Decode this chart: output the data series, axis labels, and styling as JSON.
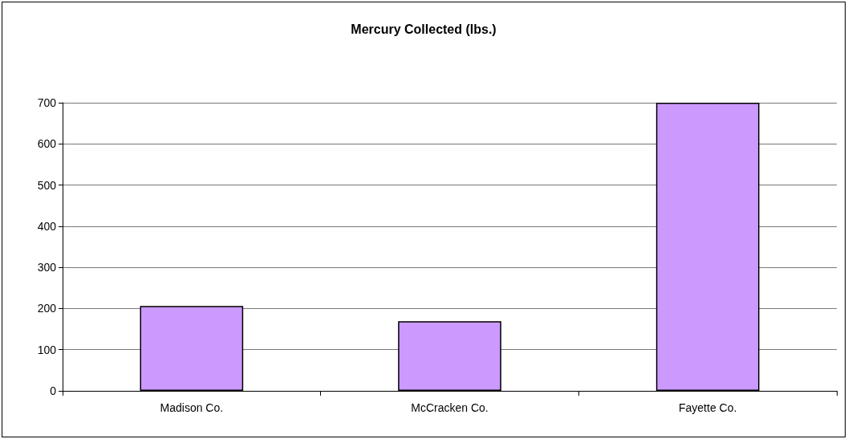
{
  "chart_data": {
    "type": "bar",
    "title": "Mercury Collected (lbs.)",
    "categories": [
      "Madison Co.",
      "McCracken Co.",
      "Fayette Co."
    ],
    "values": [
      206,
      169,
      700
    ],
    "color": "#cc99ff",
    "ylim": [
      0,
      700
    ],
    "yticks": [
      0,
      100,
      200,
      300,
      400,
      500,
      600,
      700
    ],
    "grid": "y"
  }
}
